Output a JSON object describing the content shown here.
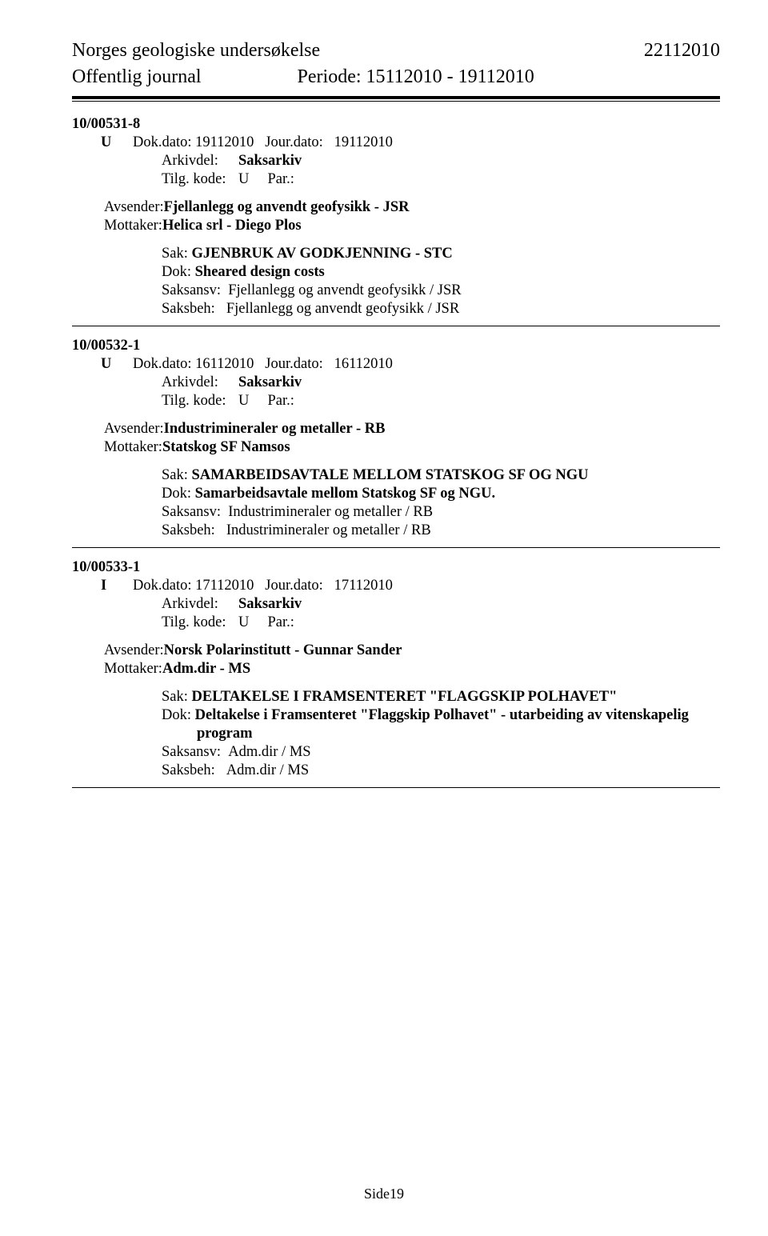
{
  "header": {
    "org": "Norges geologiske undersøkelse",
    "date_right": "22112010",
    "journal_label": "Offentlig journal",
    "period_label": "Periode:",
    "period_value": "15112010 - 19112010"
  },
  "entries": [
    {
      "case_no": "10/00531-8",
      "rec_type": "U",
      "dokdato_label": "Dok.dato:",
      "dokdato": "19112010",
      "jourdato_label": "Jour.dato:",
      "jourdato": "19112010",
      "arkiv_label": "Arkivdel:",
      "arkiv_value": "Saksarkiv",
      "tilg_label": "Tilg. kode:",
      "tilg_value": "U",
      "par_label": "Par.:",
      "avsender_label": "Avsender:",
      "avsender": "Fjellanlegg og anvendt geofysikk - JSR",
      "mottaker_label": "Mottaker:",
      "mottaker": "Helica srl - Diego Plos",
      "sak_label": "Sak:",
      "sak": "GJENBRUK AV GODKJENNING - STC",
      "dok_label": "Dok:",
      "dok": "Sheared design costs",
      "saksansv_label": "Saksansv:",
      "saksansv": "Fjellanlegg og anvendt geofysikk / JSR",
      "saksbeh_label": "Saksbeh:",
      "saksbeh": "Fjellanlegg og anvendt geofysikk / JSR"
    },
    {
      "case_no": "10/00532-1",
      "rec_type": "U",
      "dokdato_label": "Dok.dato:",
      "dokdato": "16112010",
      "jourdato_label": "Jour.dato:",
      "jourdato": "16112010",
      "arkiv_label": "Arkivdel:",
      "arkiv_value": "Saksarkiv",
      "tilg_label": "Tilg. kode:",
      "tilg_value": "U",
      "par_label": "Par.:",
      "avsender_label": "Avsender:",
      "avsender": "Industrimineraler og metaller - RB",
      "mottaker_label": "Mottaker:",
      "mottaker": "Statskog SF Namsos",
      "sak_label": "Sak:",
      "sak": "SAMARBEIDSAVTALE MELLOM STATSKOG SF OG NGU",
      "dok_label": "Dok:",
      "dok": "Samarbeidsavtale mellom Statskog SF og NGU.",
      "saksansv_label": "Saksansv:",
      "saksansv": "Industrimineraler og metaller / RB",
      "saksbeh_label": "Saksbeh:",
      "saksbeh": "Industrimineraler og metaller / RB"
    },
    {
      "case_no": "10/00533-1",
      "rec_type": "I",
      "dokdato_label": "Dok.dato:",
      "dokdato": "17112010",
      "jourdato_label": "Jour.dato:",
      "jourdato": "17112010",
      "arkiv_label": "Arkivdel:",
      "arkiv_value": "Saksarkiv",
      "tilg_label": "Tilg. kode:",
      "tilg_value": "U",
      "par_label": "Par.:",
      "avsender_label": "Avsender:",
      "avsender": "Norsk Polarinstitutt - Gunnar Sander",
      "mottaker_label": "Mottaker:",
      "mottaker": "Adm.dir - MS",
      "sak_label": "Sak:",
      "sak": "DELTAKELSE I FRAMSENTERET \"FLAGGSKIP POLHAVET\"",
      "dok_label": "Dok:",
      "dok": "Deltakelse i Framsenteret \"Flaggskip Polhavet\" - utarbeiding av vitenskapelig",
      "dok_line2": "program",
      "saksansv_label": "Saksansv:",
      "saksansv": "Adm.dir / MS",
      "saksbeh_label": "Saksbeh:",
      "saksbeh": "Adm.dir / MS"
    }
  ],
  "footer": "Side19"
}
